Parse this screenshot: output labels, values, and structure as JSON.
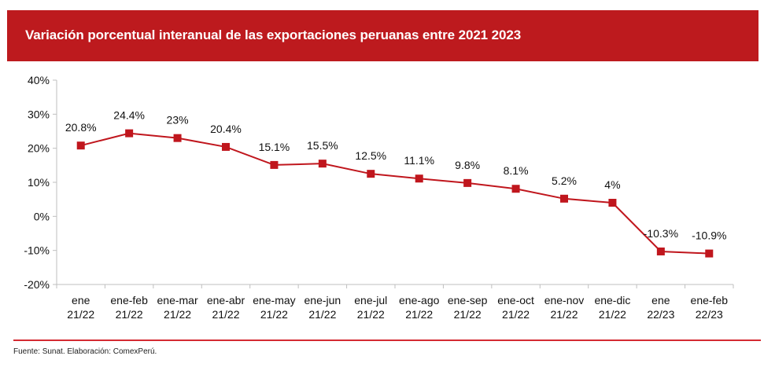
{
  "header": {
    "title": "Variación porcentual interanual de las exportaciones peruanas entre 2021 2023"
  },
  "footer": {
    "source": "Fuente: Sunat. Elaboración: ComexPerú."
  },
  "colors": {
    "header_bg": "#bd1a1e",
    "series": "#c0161d",
    "footer_line": "#d42a32",
    "axis": "#bfbfbf"
  },
  "chart_data": {
    "type": "line",
    "title": "Variación porcentual interanual de las exportaciones peruanas entre 2021 2023",
    "xlabel": "",
    "ylabel": "",
    "categories": [
      [
        "ene",
        "21/22"
      ],
      [
        "ene-feb",
        "21/22"
      ],
      [
        "ene-mar",
        "21/22"
      ],
      [
        "ene-abr",
        "21/22"
      ],
      [
        "ene-may",
        "21/22"
      ],
      [
        "ene-jun",
        "21/22"
      ],
      [
        "ene-jul",
        "21/22"
      ],
      [
        "ene-ago",
        "21/22"
      ],
      [
        "ene-sep",
        "21/22"
      ],
      [
        "ene-oct",
        "21/22"
      ],
      [
        "ene-nov",
        "21/22"
      ],
      [
        "ene-dic",
        "21/22"
      ],
      [
        "ene",
        "22/23"
      ],
      [
        "ene-feb",
        "22/23"
      ]
    ],
    "series": [
      {
        "name": "Variación porcentual",
        "values": [
          20.8,
          24.4,
          23,
          20.4,
          15.1,
          15.5,
          12.5,
          11.1,
          9.8,
          8.1,
          5.2,
          4,
          -10.3,
          -10.9
        ],
        "labels": [
          "20.8%",
          "24.4%",
          "23%",
          "20.4%",
          "15.1%",
          "15.5%",
          "12.5%",
          "11.1%",
          "9.8%",
          "8.1%",
          "5.2%",
          "4%",
          "-10.3%",
          "-10.9%"
        ],
        "marker": "square"
      }
    ],
    "yticks": [
      40,
      30,
      20,
      10,
      0,
      -10,
      -20
    ],
    "ytick_labels": [
      "40%",
      "30%",
      "20%",
      "10%",
      "0%",
      "-10%",
      "-20%"
    ],
    "ylim": [
      -20,
      40
    ],
    "grid": false,
    "legend": "none"
  }
}
